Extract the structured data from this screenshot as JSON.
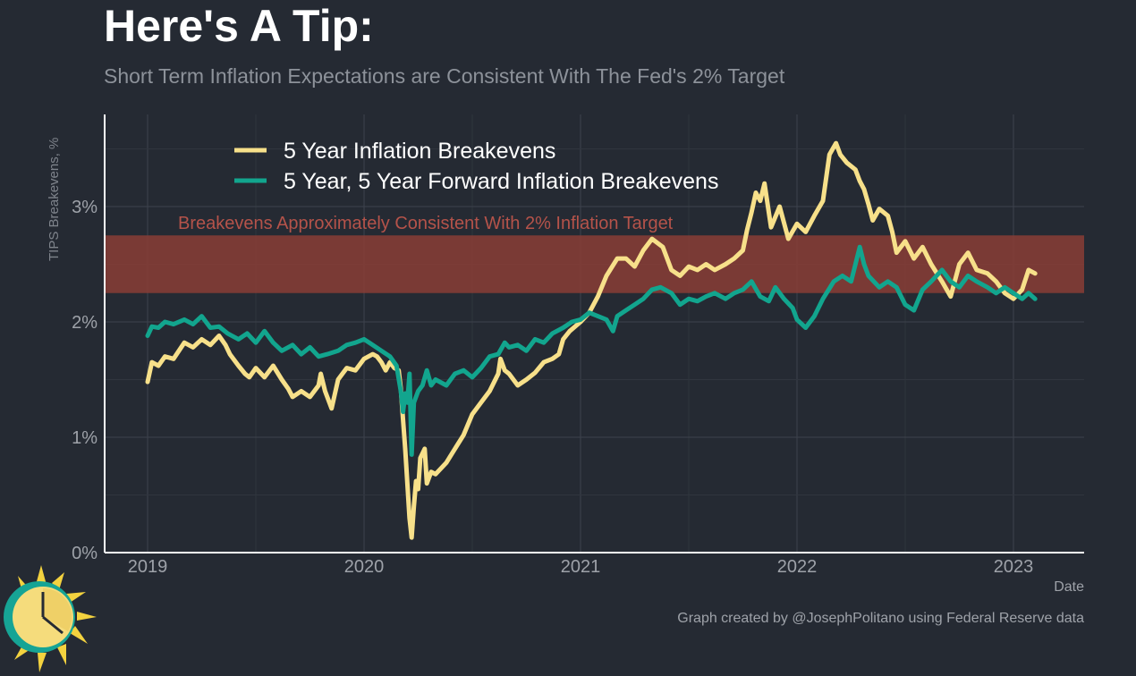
{
  "header": {
    "title": "Here's A Tip:",
    "subtitle": "Short Term Inflation Expectations are Consistent With The Fed's 2% Target"
  },
  "caption": "Graph created by @JosephPolitano using Federal Reserve data",
  "colors": {
    "background": "#252a33",
    "series_5y": "#f7e08a",
    "series_5y5y": "#12a58e",
    "band": "#8e3e36",
    "band_text": "#b5534a",
    "grid": "#3b404a",
    "axis_text": "#9ea2a9"
  },
  "chart_data": {
    "type": "line",
    "xlabel": "Date",
    "ylabel": "TIPS Breakevens, %",
    "xlim": [
      2019.0,
      2023.3
    ],
    "ylim": [
      0,
      3.8
    ],
    "x_ticks": [
      {
        "value": 2019,
        "label": "2019"
      },
      {
        "value": 2020,
        "label": "2020"
      },
      {
        "value": 2021,
        "label": "2021"
      },
      {
        "value": 2022,
        "label": "2022"
      },
      {
        "value": 2023,
        "label": "2023"
      }
    ],
    "y_ticks": [
      {
        "value": 0,
        "label": "0%"
      },
      {
        "value": 1,
        "label": "1%"
      },
      {
        "value": 2,
        "label": "2%"
      },
      {
        "value": 3,
        "label": "3%"
      }
    ],
    "grid": true,
    "legend_position": "top-left",
    "band": {
      "ymin": 2.25,
      "ymax": 2.75,
      "label": "Breakevens Approximately Consistent With 2% Inflation Target"
    },
    "series": [
      {
        "name": "5 Year Inflation Breakevens",
        "color": "#f7e08a",
        "points": [
          [
            2019.0,
            1.48
          ],
          [
            2019.02,
            1.65
          ],
          [
            2019.05,
            1.62
          ],
          [
            2019.08,
            1.7
          ],
          [
            2019.12,
            1.68
          ],
          [
            2019.17,
            1.82
          ],
          [
            2019.21,
            1.78
          ],
          [
            2019.25,
            1.85
          ],
          [
            2019.29,
            1.8
          ],
          [
            2019.33,
            1.88
          ],
          [
            2019.36,
            1.8
          ],
          [
            2019.38,
            1.72
          ],
          [
            2019.42,
            1.62
          ],
          [
            2019.45,
            1.55
          ],
          [
            2019.47,
            1.52
          ],
          [
            2019.5,
            1.6
          ],
          [
            2019.54,
            1.52
          ],
          [
            2019.58,
            1.62
          ],
          [
            2019.62,
            1.5
          ],
          [
            2019.65,
            1.42
          ],
          [
            2019.67,
            1.35
          ],
          [
            2019.71,
            1.4
          ],
          [
            2019.75,
            1.35
          ],
          [
            2019.79,
            1.45
          ],
          [
            2019.8,
            1.55
          ],
          [
            2019.82,
            1.4
          ],
          [
            2019.85,
            1.25
          ],
          [
            2019.88,
            1.5
          ],
          [
            2019.9,
            1.55
          ],
          [
            2019.92,
            1.6
          ],
          [
            2019.96,
            1.58
          ],
          [
            2020.0,
            1.68
          ],
          [
            2020.04,
            1.72
          ],
          [
            2020.06,
            1.7
          ],
          [
            2020.08,
            1.65
          ],
          [
            2020.1,
            1.58
          ],
          [
            2020.12,
            1.65
          ],
          [
            2020.14,
            1.6
          ],
          [
            2020.16,
            1.58
          ],
          [
            2020.17,
            1.42
          ],
          [
            2020.18,
            1.15
          ],
          [
            2020.19,
            0.9
          ],
          [
            2020.2,
            0.6
          ],
          [
            2020.21,
            0.3
          ],
          [
            2020.22,
            0.13
          ],
          [
            2020.23,
            0.4
          ],
          [
            2020.24,
            0.62
          ],
          [
            2020.25,
            0.55
          ],
          [
            2020.26,
            0.82
          ],
          [
            2020.28,
            0.9
          ],
          [
            2020.29,
            0.6
          ],
          [
            2020.31,
            0.7
          ],
          [
            2020.33,
            0.68
          ],
          [
            2020.38,
            0.78
          ],
          [
            2020.42,
            0.9
          ],
          [
            2020.46,
            1.02
          ],
          [
            2020.5,
            1.2
          ],
          [
            2020.54,
            1.3
          ],
          [
            2020.58,
            1.4
          ],
          [
            2020.62,
            1.55
          ],
          [
            2020.63,
            1.68
          ],
          [
            2020.65,
            1.58
          ],
          [
            2020.67,
            1.55
          ],
          [
            2020.71,
            1.45
          ],
          [
            2020.75,
            1.5
          ],
          [
            2020.79,
            1.56
          ],
          [
            2020.83,
            1.65
          ],
          [
            2020.87,
            1.68
          ],
          [
            2020.9,
            1.72
          ],
          [
            2020.92,
            1.85
          ],
          [
            2020.95,
            1.92
          ],
          [
            2021.0,
            2.0
          ],
          [
            2021.04,
            2.08
          ],
          [
            2021.08,
            2.22
          ],
          [
            2021.12,
            2.4
          ],
          [
            2021.17,
            2.55
          ],
          [
            2021.21,
            2.55
          ],
          [
            2021.25,
            2.48
          ],
          [
            2021.29,
            2.62
          ],
          [
            2021.33,
            2.72
          ],
          [
            2021.38,
            2.65
          ],
          [
            2021.42,
            2.45
          ],
          [
            2021.46,
            2.4
          ],
          [
            2021.5,
            2.48
          ],
          [
            2021.54,
            2.45
          ],
          [
            2021.58,
            2.5
          ],
          [
            2021.62,
            2.45
          ],
          [
            2021.67,
            2.5
          ],
          [
            2021.71,
            2.55
          ],
          [
            2021.75,
            2.62
          ],
          [
            2021.77,
            2.8
          ],
          [
            2021.79,
            2.95
          ],
          [
            2021.81,
            3.12
          ],
          [
            2021.83,
            3.05
          ],
          [
            2021.85,
            3.2
          ],
          [
            2021.88,
            2.82
          ],
          [
            2021.92,
            3.0
          ],
          [
            2021.96,
            2.72
          ],
          [
            2022.0,
            2.85
          ],
          [
            2022.04,
            2.78
          ],
          [
            2022.08,
            2.92
          ],
          [
            2022.12,
            3.05
          ],
          [
            2022.15,
            3.45
          ],
          [
            2022.18,
            3.55
          ],
          [
            2022.2,
            3.45
          ],
          [
            2022.23,
            3.38
          ],
          [
            2022.27,
            3.32
          ],
          [
            2022.29,
            3.22
          ],
          [
            2022.31,
            3.15
          ],
          [
            2022.33,
            3.02
          ],
          [
            2022.35,
            2.88
          ],
          [
            2022.38,
            2.98
          ],
          [
            2022.42,
            2.92
          ],
          [
            2022.44,
            2.78
          ],
          [
            2022.46,
            2.6
          ],
          [
            2022.5,
            2.7
          ],
          [
            2022.54,
            2.55
          ],
          [
            2022.58,
            2.65
          ],
          [
            2022.62,
            2.5
          ],
          [
            2022.67,
            2.35
          ],
          [
            2022.71,
            2.22
          ],
          [
            2022.75,
            2.5
          ],
          [
            2022.79,
            2.6
          ],
          [
            2022.83,
            2.45
          ],
          [
            2022.88,
            2.42
          ],
          [
            2022.92,
            2.35
          ],
          [
            2022.96,
            2.25
          ],
          [
            2023.0,
            2.2
          ],
          [
            2023.04,
            2.28
          ],
          [
            2023.07,
            2.45
          ],
          [
            2023.1,
            2.42
          ]
        ]
      },
      {
        "name": "5 Year, 5 Year Forward Inflation Breakevens",
        "color": "#12a58e",
        "points": [
          [
            2019.0,
            1.88
          ],
          [
            2019.02,
            1.96
          ],
          [
            2019.05,
            1.95
          ],
          [
            2019.08,
            2.0
          ],
          [
            2019.12,
            1.98
          ],
          [
            2019.17,
            2.02
          ],
          [
            2019.21,
            1.98
          ],
          [
            2019.25,
            2.05
          ],
          [
            2019.29,
            1.95
          ],
          [
            2019.33,
            1.96
          ],
          [
            2019.37,
            1.9
          ],
          [
            2019.42,
            1.85
          ],
          [
            2019.46,
            1.9
          ],
          [
            2019.5,
            1.82
          ],
          [
            2019.54,
            1.92
          ],
          [
            2019.58,
            1.82
          ],
          [
            2019.62,
            1.75
          ],
          [
            2019.67,
            1.8
          ],
          [
            2019.71,
            1.72
          ],
          [
            2019.75,
            1.78
          ],
          [
            2019.79,
            1.7
          ],
          [
            2019.83,
            1.72
          ],
          [
            2019.88,
            1.75
          ],
          [
            2019.92,
            1.8
          ],
          [
            2019.96,
            1.82
          ],
          [
            2020.0,
            1.85
          ],
          [
            2020.04,
            1.8
          ],
          [
            2020.08,
            1.75
          ],
          [
            2020.12,
            1.7
          ],
          [
            2020.15,
            1.62
          ],
          [
            2020.17,
            1.4
          ],
          [
            2020.18,
            1.22
          ],
          [
            2020.19,
            1.38
          ],
          [
            2020.2,
            1.3
          ],
          [
            2020.21,
            1.55
          ],
          [
            2020.22,
            0.85
          ],
          [
            2020.23,
            1.3
          ],
          [
            2020.25,
            1.4
          ],
          [
            2020.27,
            1.45
          ],
          [
            2020.29,
            1.58
          ],
          [
            2020.31,
            1.45
          ],
          [
            2020.33,
            1.5
          ],
          [
            2020.38,
            1.45
          ],
          [
            2020.42,
            1.55
          ],
          [
            2020.46,
            1.58
          ],
          [
            2020.5,
            1.52
          ],
          [
            2020.54,
            1.6
          ],
          [
            2020.58,
            1.7
          ],
          [
            2020.62,
            1.72
          ],
          [
            2020.65,
            1.82
          ],
          [
            2020.67,
            1.78
          ],
          [
            2020.71,
            1.8
          ],
          [
            2020.75,
            1.75
          ],
          [
            2020.79,
            1.85
          ],
          [
            2020.83,
            1.82
          ],
          [
            2020.87,
            1.9
          ],
          [
            2020.92,
            1.95
          ],
          [
            2020.96,
            2.0
          ],
          [
            2021.0,
            2.02
          ],
          [
            2021.04,
            2.08
          ],
          [
            2021.08,
            2.05
          ],
          [
            2021.12,
            2.02
          ],
          [
            2021.15,
            1.92
          ],
          [
            2021.17,
            2.05
          ],
          [
            2021.21,
            2.1
          ],
          [
            2021.25,
            2.15
          ],
          [
            2021.29,
            2.2
          ],
          [
            2021.33,
            2.28
          ],
          [
            2021.37,
            2.3
          ],
          [
            2021.42,
            2.25
          ],
          [
            2021.46,
            2.15
          ],
          [
            2021.5,
            2.2
          ],
          [
            2021.54,
            2.18
          ],
          [
            2021.58,
            2.22
          ],
          [
            2021.62,
            2.25
          ],
          [
            2021.67,
            2.2
          ],
          [
            2021.71,
            2.25
          ],
          [
            2021.75,
            2.28
          ],
          [
            2021.79,
            2.35
          ],
          [
            2021.83,
            2.22
          ],
          [
            2021.87,
            2.18
          ],
          [
            2021.9,
            2.3
          ],
          [
            2021.94,
            2.2
          ],
          [
            2021.98,
            2.12
          ],
          [
            2022.0,
            2.02
          ],
          [
            2022.04,
            1.95
          ],
          [
            2022.08,
            2.05
          ],
          [
            2022.12,
            2.2
          ],
          [
            2022.17,
            2.35
          ],
          [
            2022.21,
            2.4
          ],
          [
            2022.25,
            2.35
          ],
          [
            2022.29,
            2.65
          ],
          [
            2022.31,
            2.5
          ],
          [
            2022.33,
            2.4
          ],
          [
            2022.38,
            2.3
          ],
          [
            2022.42,
            2.35
          ],
          [
            2022.46,
            2.3
          ],
          [
            2022.5,
            2.15
          ],
          [
            2022.54,
            2.1
          ],
          [
            2022.58,
            2.28
          ],
          [
            2022.62,
            2.35
          ],
          [
            2022.67,
            2.45
          ],
          [
            2022.71,
            2.35
          ],
          [
            2022.75,
            2.3
          ],
          [
            2022.79,
            2.4
          ],
          [
            2022.83,
            2.35
          ],
          [
            2022.88,
            2.3
          ],
          [
            2022.92,
            2.25
          ],
          [
            2022.96,
            2.3
          ],
          [
            2023.0,
            2.25
          ],
          [
            2023.04,
            2.2
          ],
          [
            2023.07,
            2.25
          ],
          [
            2023.1,
            2.2
          ]
        ]
      }
    ]
  },
  "logo": {
    "icon": "sun-clock-icon"
  }
}
